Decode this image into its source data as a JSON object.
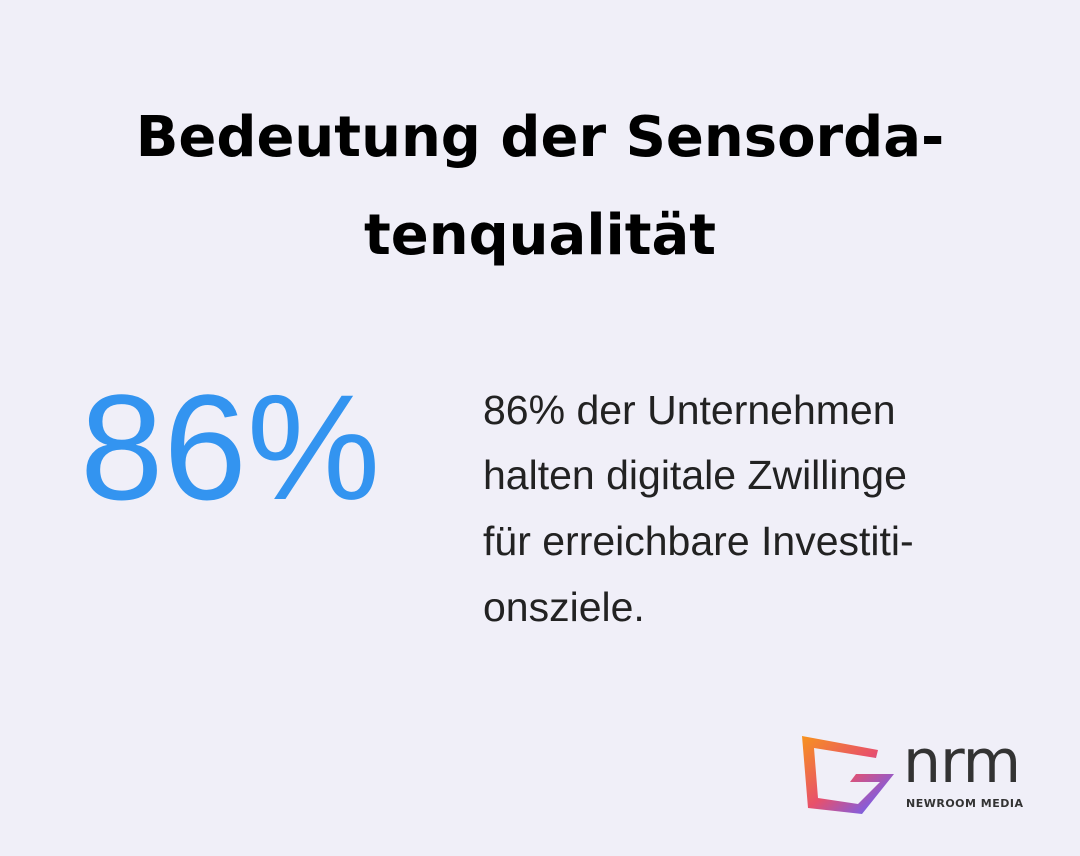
{
  "header": {
    "title_lines": [
      "Bedeutung der Sensorda-",
      "tenqualität"
    ]
  },
  "stat": {
    "value": "86%",
    "description_lines": [
      "86% der Unternehmen",
      "halten digitale Zwillinge",
      "für erreichbare Investiti-",
      "onsziele."
    ]
  },
  "logo": {
    "name": "nrm",
    "tagline": "NEWROOM MEDIA"
  }
}
